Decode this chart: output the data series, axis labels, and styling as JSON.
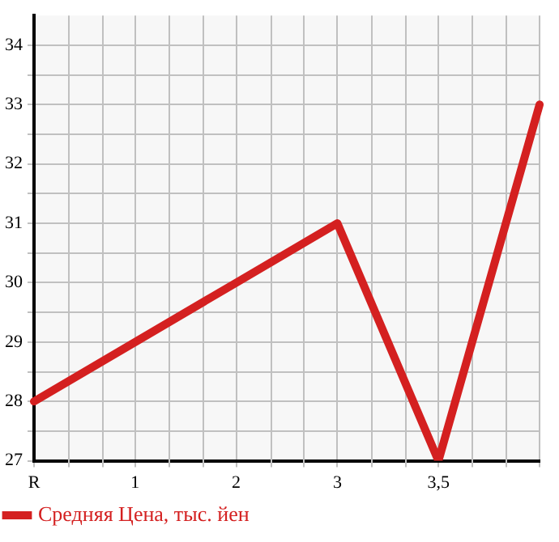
{
  "chart_data": {
    "type": "line",
    "categories": [
      "R",
      "1",
      "2",
      "3",
      "3,5",
      null
    ],
    "series": [
      {
        "name": "Средняя Цена, тыс. йен",
        "color": "#d42020",
        "values": [
          28,
          29,
          30,
          31,
          27,
          33
        ]
      }
    ],
    "ylim": [
      27,
      34.5
    ],
    "yticks": [
      27,
      {
        "value": 27.5,
        "label": null
      },
      28,
      {
        "value": 28.5,
        "label": null
      },
      29,
      {
        "value": 29.5,
        "label": null
      },
      30,
      {
        "value": 30.5,
        "label": null
      },
      31,
      {
        "value": 31.5,
        "label": null
      },
      32,
      {
        "value": 32.5,
        "label": null
      },
      33,
      {
        "value": 33.5,
        "label": null
      },
      34
    ],
    "grid": true,
    "legend": "bottom left",
    "marker": "none",
    "line_style": "solid"
  }
}
